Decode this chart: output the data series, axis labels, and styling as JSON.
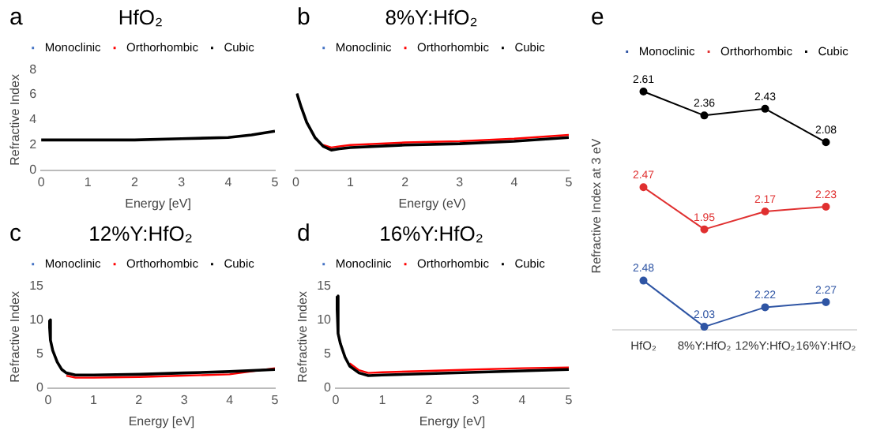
{
  "chart_data": [
    {
      "type": "line",
      "title": "HfO₂",
      "xlabel": "Energy [eV]",
      "ylabel": "Refractive Index",
      "annotations": [
        "a"
      ],
      "legend": "top",
      "grid": false,
      "marker": "none",
      "xlim": [
        0,
        5
      ],
      "xticks": [
        0,
        1,
        2,
        3,
        4,
        5
      ],
      "ylim": [
        0,
        8
      ],
      "yticks": [
        0,
        2,
        4,
        6,
        8
      ],
      "x": [
        0,
        1,
        2,
        3,
        4,
        4.5,
        5
      ],
      "series": [
        {
          "name": "Monoclinic",
          "color": "#4472c4",
          "values": [
            null,
            null,
            null,
            null,
            null,
            null,
            null
          ]
        },
        {
          "name": "Orthorhombic",
          "color": "#ff0000",
          "values": [
            null,
            null,
            null,
            null,
            null,
            null,
            null
          ]
        },
        {
          "name": "Cubic",
          "color": "#000000",
          "values": [
            2.4,
            2.4,
            2.4,
            2.5,
            2.6,
            2.8,
            3.1
          ]
        }
      ]
    },
    {
      "type": "line",
      "title": "8%Y:HfO₂",
      "xlabel": "Energy (eV)",
      "annotations": [
        "b"
      ],
      "legend": "top",
      "grid": false,
      "marker": "none",
      "xlim": [
        0,
        5
      ],
      "xticks": [
        0,
        1,
        2,
        3,
        4,
        5
      ],
      "ylim": [
        0,
        8
      ],
      "yticks": [
        0,
        2,
        4,
        6,
        8
      ],
      "tick_labels": "x",
      "x": [
        0.02,
        0.1,
        0.2,
        0.35,
        0.5,
        0.65,
        0.8,
        1,
        2,
        3,
        4,
        5
      ],
      "series": [
        {
          "name": "Monoclinic",
          "color": "#4472c4",
          "values": [
            null,
            null,
            null,
            null,
            null,
            null,
            null,
            null,
            null,
            null,
            null,
            null
          ]
        },
        {
          "name": "Orthorhombic",
          "color": "#ff0000",
          "values": [
            null,
            null,
            null,
            null,
            2.0,
            1.8,
            1.9,
            2.0,
            2.2,
            2.3,
            2.5,
            2.8
          ]
        },
        {
          "name": "Cubic",
          "color": "#000000",
          "values": [
            6.1,
            5.0,
            3.8,
            2.6,
            1.9,
            1.6,
            1.7,
            1.8,
            2.0,
            2.1,
            2.3,
            2.6
          ]
        }
      ]
    },
    {
      "type": "line",
      "title": "12%Y:HfO₂",
      "xlabel": "Energy [eV]",
      "ylabel": "Refractive Index",
      "annotations": [
        "c"
      ],
      "legend": "top",
      "grid": false,
      "marker": "none",
      "xlim": [
        0,
        5
      ],
      "xticks": [
        0,
        1,
        2,
        3,
        4,
        5
      ],
      "ylim": [
        0,
        15
      ],
      "yticks": [
        0,
        5,
        10,
        15
      ],
      "x": [
        0.02,
        0.05,
        0.1,
        0.2,
        0.3,
        0.4,
        0.6,
        1,
        2,
        3,
        4,
        5
      ],
      "series": [
        {
          "name": "Monoclinic",
          "color": "#4472c4",
          "values": [
            null,
            null,
            null,
            null,
            null,
            null,
            null,
            null,
            null,
            null,
            null,
            null
          ]
        },
        {
          "name": "Orthorhombic",
          "color": "#ff0000",
          "values": [
            null,
            null,
            null,
            null,
            null,
            1.8,
            1.5,
            1.5,
            1.6,
            1.8,
            2.0,
            2.9
          ]
        },
        {
          "name": "Cubic",
          "color": "#000000",
          "values": [
            10,
            7,
            5.5,
            3.8,
            2.7,
            2.2,
            1.9,
            1.9,
            2.0,
            2.2,
            2.4,
            2.7
          ]
        }
      ]
    },
    {
      "type": "line",
      "title": "16%Y:HfO₂",
      "xlabel": "Energy [eV]",
      "ylabel": "Refractive Index",
      "annotations": [
        "d"
      ],
      "legend": "top",
      "grid": false,
      "marker": "none",
      "xlim": [
        0,
        5
      ],
      "xticks": [
        0,
        1,
        2,
        3,
        4,
        5
      ],
      "ylim": [
        0,
        15
      ],
      "yticks": [
        0,
        5,
        10,
        15
      ],
      "x": [
        0.02,
        0.05,
        0.1,
        0.2,
        0.3,
        0.5,
        0.7,
        1,
        2,
        3,
        4,
        5
      ],
      "series": [
        {
          "name": "Monoclinic",
          "color": "#4472c4",
          "values": [
            null,
            null,
            null,
            null,
            null,
            null,
            null,
            null,
            null,
            null,
            null,
            null
          ]
        },
        {
          "name": "Orthorhombic",
          "color": "#ff0000",
          "values": [
            null,
            null,
            null,
            null,
            3.6,
            2.6,
            2.2,
            2.3,
            2.5,
            2.7,
            2.9,
            3.0
          ]
        },
        {
          "name": "Cubic",
          "color": "#000000",
          "values": [
            13.5,
            8,
            6.5,
            4.5,
            3.2,
            2.2,
            1.8,
            1.9,
            2.1,
            2.3,
            2.5,
            2.7
          ]
        }
      ]
    },
    {
      "type": "line",
      "annotations": [
        "e"
      ],
      "legend": "top",
      "grid": false,
      "marker": "circle",
      "data_labels": true,
      "tick_labels": false,
      "categories": [
        null,
        null,
        null,
        null
      ],
      "series": [
        {
          "name": "Monoclinic",
          "color": "#2f55a4",
          "values": [
            null,
            null,
            null,
            null
          ]
        },
        {
          "name": "Orthorhombic",
          "color": "#e03030",
          "values": [
            null,
            null,
            null,
            null
          ]
        },
        {
          "name": "Cubic",
          "color": "#000000",
          "values": [
            2.61,
            2.36,
            2.43,
            2.08
          ]
        }
      ]
    },
    {
      "type": "line",
      "ylabel": "Refractive Index at 3 eV",
      "grid": false,
      "marker": "circle",
      "data_labels": true,
      "tick_labels": false,
      "categories": [
        null,
        null,
        null,
        null
      ],
      "series": [
        {
          "color": "#e03030",
          "values": [
            2.47,
            1.95,
            2.17,
            2.23
          ]
        }
      ]
    },
    {
      "type": "line",
      "grid": false,
      "marker": "circle",
      "data_labels": true,
      "tick_labels": "x",
      "categories": [
        "HfO₂",
        "8%Y:HfO₂",
        "12%Y:HfO₂",
        "16%Y:HfO₂"
      ],
      "series": [
        {
          "color": "#2f55a4",
          "values": [
            2.48,
            2.03,
            2.22,
            2.27
          ]
        }
      ]
    }
  ]
}
